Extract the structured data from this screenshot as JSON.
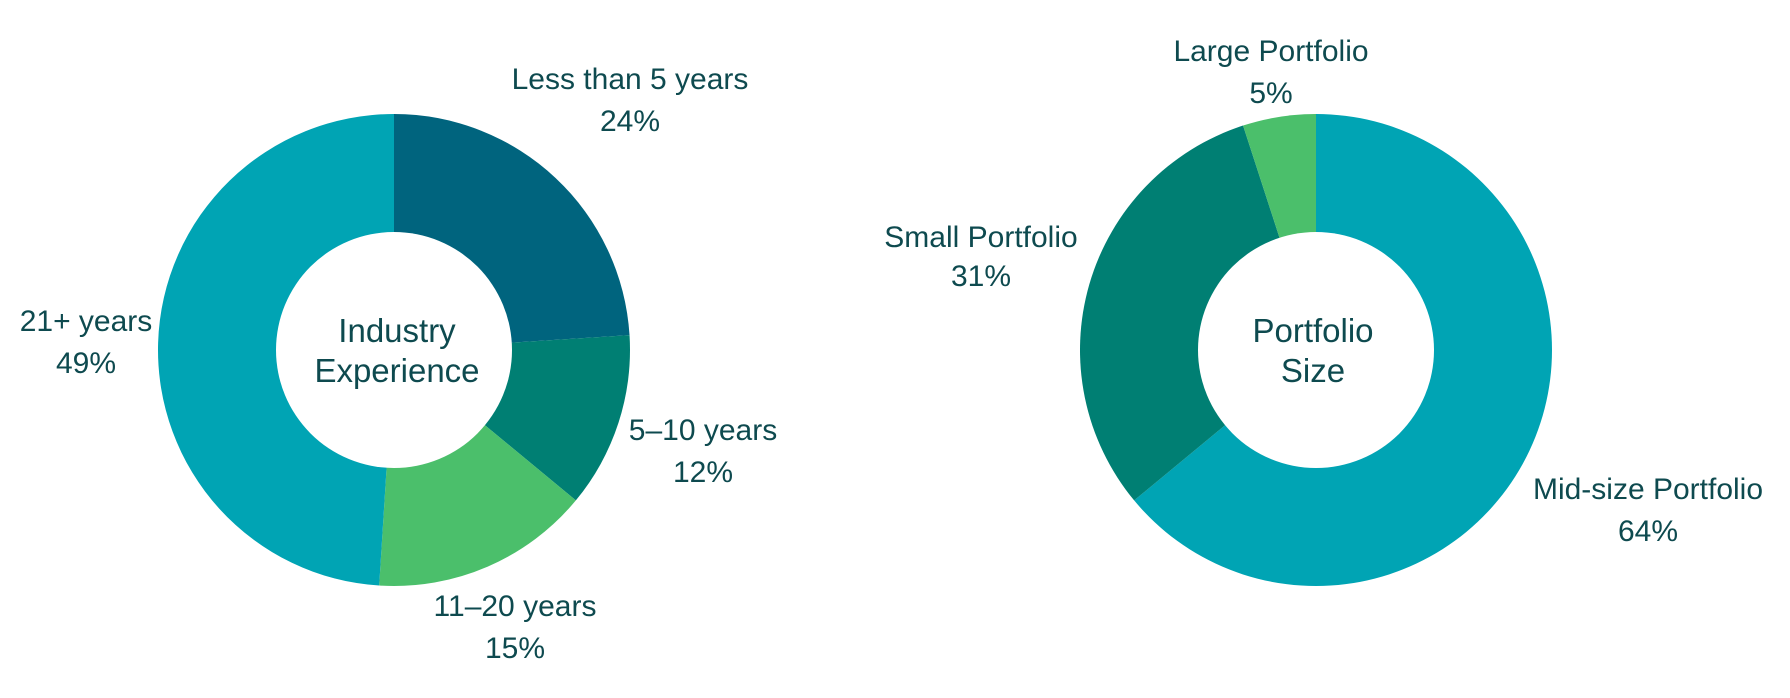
{
  "chart_data": [
    {
      "type": "pie",
      "title": "Industry Experience",
      "title_lines": [
        "Industry",
        "Experience"
      ],
      "categories": [
        "Less than 5 years",
        "5–10 years",
        "11–20 years",
        "21+ years"
      ],
      "values": [
        24,
        12,
        15,
        49
      ],
      "value_labels": [
        "24%",
        "12%",
        "15%",
        "49%"
      ],
      "colors": [
        "#00647e",
        "#007f73",
        "#4bbf6b",
        "#00a4b4"
      ]
    },
    {
      "type": "pie",
      "title": "Portfolio Size",
      "title_lines": [
        "Portfolio",
        "Size"
      ],
      "categories": [
        "Mid-size Portfolio",
        "Small Portfolio",
        "Large Portfolio"
      ],
      "values": [
        64,
        31,
        5
      ],
      "value_labels": [
        "64%",
        "31%",
        "5%"
      ],
      "colors": [
        "#00a4b4",
        "#007f73",
        "#4bbf6b"
      ]
    }
  ]
}
